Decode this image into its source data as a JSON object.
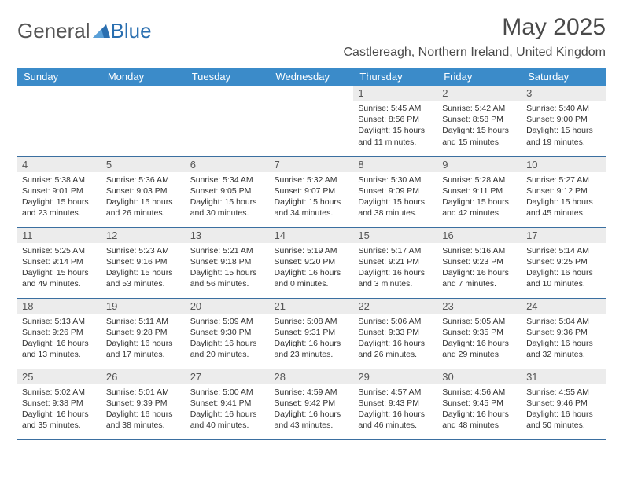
{
  "brand": {
    "part1": "General",
    "part2": "Blue"
  },
  "colors": {
    "header_bg": "#3b8bc9",
    "header_text": "#ffffff",
    "rule": "#3b6fa0",
    "daynum_bg": "#ececec",
    "text": "#333333",
    "brand_blue": "#2a6fb0"
  },
  "title": "May 2025",
  "location": "Castlereagh, Northern Ireland, United Kingdom",
  "weekdays": [
    "Sunday",
    "Monday",
    "Tuesday",
    "Wednesday",
    "Thursday",
    "Friday",
    "Saturday"
  ],
  "weeks": [
    [
      null,
      null,
      null,
      null,
      {
        "n": "1",
        "sunrise": "5:45 AM",
        "sunset": "8:56 PM",
        "daylight": "15 hours and 11 minutes."
      },
      {
        "n": "2",
        "sunrise": "5:42 AM",
        "sunset": "8:58 PM",
        "daylight": "15 hours and 15 minutes."
      },
      {
        "n": "3",
        "sunrise": "5:40 AM",
        "sunset": "9:00 PM",
        "daylight": "15 hours and 19 minutes."
      }
    ],
    [
      {
        "n": "4",
        "sunrise": "5:38 AM",
        "sunset": "9:01 PM",
        "daylight": "15 hours and 23 minutes."
      },
      {
        "n": "5",
        "sunrise": "5:36 AM",
        "sunset": "9:03 PM",
        "daylight": "15 hours and 26 minutes."
      },
      {
        "n": "6",
        "sunrise": "5:34 AM",
        "sunset": "9:05 PM",
        "daylight": "15 hours and 30 minutes."
      },
      {
        "n": "7",
        "sunrise": "5:32 AM",
        "sunset": "9:07 PM",
        "daylight": "15 hours and 34 minutes."
      },
      {
        "n": "8",
        "sunrise": "5:30 AM",
        "sunset": "9:09 PM",
        "daylight": "15 hours and 38 minutes."
      },
      {
        "n": "9",
        "sunrise": "5:28 AM",
        "sunset": "9:11 PM",
        "daylight": "15 hours and 42 minutes."
      },
      {
        "n": "10",
        "sunrise": "5:27 AM",
        "sunset": "9:12 PM",
        "daylight": "15 hours and 45 minutes."
      }
    ],
    [
      {
        "n": "11",
        "sunrise": "5:25 AM",
        "sunset": "9:14 PM",
        "daylight": "15 hours and 49 minutes."
      },
      {
        "n": "12",
        "sunrise": "5:23 AM",
        "sunset": "9:16 PM",
        "daylight": "15 hours and 53 minutes."
      },
      {
        "n": "13",
        "sunrise": "5:21 AM",
        "sunset": "9:18 PM",
        "daylight": "15 hours and 56 minutes."
      },
      {
        "n": "14",
        "sunrise": "5:19 AM",
        "sunset": "9:20 PM",
        "daylight": "16 hours and 0 minutes."
      },
      {
        "n": "15",
        "sunrise": "5:17 AM",
        "sunset": "9:21 PM",
        "daylight": "16 hours and 3 minutes."
      },
      {
        "n": "16",
        "sunrise": "5:16 AM",
        "sunset": "9:23 PM",
        "daylight": "16 hours and 7 minutes."
      },
      {
        "n": "17",
        "sunrise": "5:14 AM",
        "sunset": "9:25 PM",
        "daylight": "16 hours and 10 minutes."
      }
    ],
    [
      {
        "n": "18",
        "sunrise": "5:13 AM",
        "sunset": "9:26 PM",
        "daylight": "16 hours and 13 minutes."
      },
      {
        "n": "19",
        "sunrise": "5:11 AM",
        "sunset": "9:28 PM",
        "daylight": "16 hours and 17 minutes."
      },
      {
        "n": "20",
        "sunrise": "5:09 AM",
        "sunset": "9:30 PM",
        "daylight": "16 hours and 20 minutes."
      },
      {
        "n": "21",
        "sunrise": "5:08 AM",
        "sunset": "9:31 PM",
        "daylight": "16 hours and 23 minutes."
      },
      {
        "n": "22",
        "sunrise": "5:06 AM",
        "sunset": "9:33 PM",
        "daylight": "16 hours and 26 minutes."
      },
      {
        "n": "23",
        "sunrise": "5:05 AM",
        "sunset": "9:35 PM",
        "daylight": "16 hours and 29 minutes."
      },
      {
        "n": "24",
        "sunrise": "5:04 AM",
        "sunset": "9:36 PM",
        "daylight": "16 hours and 32 minutes."
      }
    ],
    [
      {
        "n": "25",
        "sunrise": "5:02 AM",
        "sunset": "9:38 PM",
        "daylight": "16 hours and 35 minutes."
      },
      {
        "n": "26",
        "sunrise": "5:01 AM",
        "sunset": "9:39 PM",
        "daylight": "16 hours and 38 minutes."
      },
      {
        "n": "27",
        "sunrise": "5:00 AM",
        "sunset": "9:41 PM",
        "daylight": "16 hours and 40 minutes."
      },
      {
        "n": "28",
        "sunrise": "4:59 AM",
        "sunset": "9:42 PM",
        "daylight": "16 hours and 43 minutes."
      },
      {
        "n": "29",
        "sunrise": "4:57 AM",
        "sunset": "9:43 PM",
        "daylight": "16 hours and 46 minutes."
      },
      {
        "n": "30",
        "sunrise": "4:56 AM",
        "sunset": "9:45 PM",
        "daylight": "16 hours and 48 minutes."
      },
      {
        "n": "31",
        "sunrise": "4:55 AM",
        "sunset": "9:46 PM",
        "daylight": "16 hours and 50 minutes."
      }
    ]
  ],
  "labels": {
    "sunrise": "Sunrise:",
    "sunset": "Sunset:",
    "daylight": "Daylight:"
  }
}
